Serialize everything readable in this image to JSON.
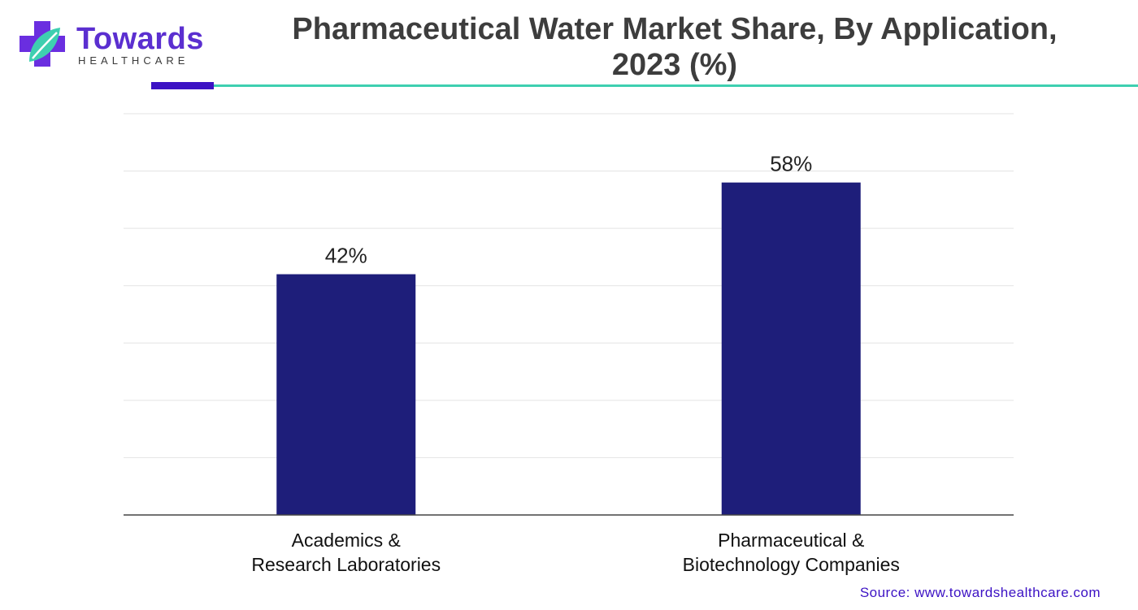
{
  "brand": {
    "name": "Towards",
    "tagline": "HEALTHCARE",
    "icon": "medical-cross-leaf-icon",
    "colors": {
      "purple": "#5b2fd0",
      "cross": "#6a2ee0",
      "leaf": "#3ecfb0"
    }
  },
  "source": "Source: www.towardshealthcare.com",
  "chart_data": {
    "type": "bar",
    "title": "Pharmaceutical Water Market Share, By Application, 2023 (%)",
    "title_lines": [
      "Pharmaceutical Water Market Share, By Application,",
      "2023 (%)"
    ],
    "categories": [
      [
        "Academics &",
        "Research Laboratories"
      ],
      [
        "Pharmaceutical &",
        "Biotechnology Companies"
      ]
    ],
    "values": [
      42,
      58
    ],
    "value_labels": [
      "42%",
      "58%"
    ],
    "ylim": [
      0,
      70
    ],
    "grid": true,
    "bar_color": "#1e1e7a",
    "xlabel": "",
    "ylabel": ""
  }
}
